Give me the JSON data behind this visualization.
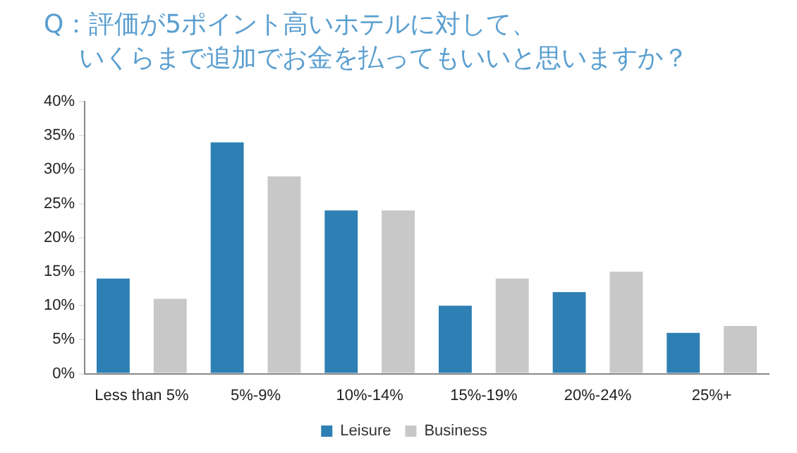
{
  "chart_data": {
    "type": "bar",
    "title": "Q：評価が5ポイント高いホテルに対して、いくらまで追加でお金を払ってもいいと思いますか？",
    "categories": [
      "Less than 5%",
      "5%-9%",
      "10%-14%",
      "15%-19%",
      "20%-24%",
      "25%+"
    ],
    "series": [
      {
        "name": "Leisure",
        "color": "#2e80b4",
        "values": [
          14,
          34,
          24,
          10,
          12,
          6
        ]
      },
      {
        "name": "Business",
        "color": "#c8c8c8",
        "values": [
          11,
          29,
          24,
          14,
          15,
          7
        ]
      }
    ],
    "ylim": [
      0,
      40
    ],
    "yticks": [
      {
        "value": 0,
        "label": "0%"
      },
      {
        "value": 5,
        "label": "5%"
      },
      {
        "value": 10,
        "label": "10%"
      },
      {
        "value": 15,
        "label": "15%"
      },
      {
        "value": 20,
        "label": "20%"
      },
      {
        "value": 25,
        "label": "25%"
      },
      {
        "value": 30,
        "label": "30%"
      },
      {
        "value": 35,
        "label": "35%"
      },
      {
        "value": 40,
        "label": "40%"
      }
    ],
    "grid": false,
    "legend": "bottom"
  }
}
